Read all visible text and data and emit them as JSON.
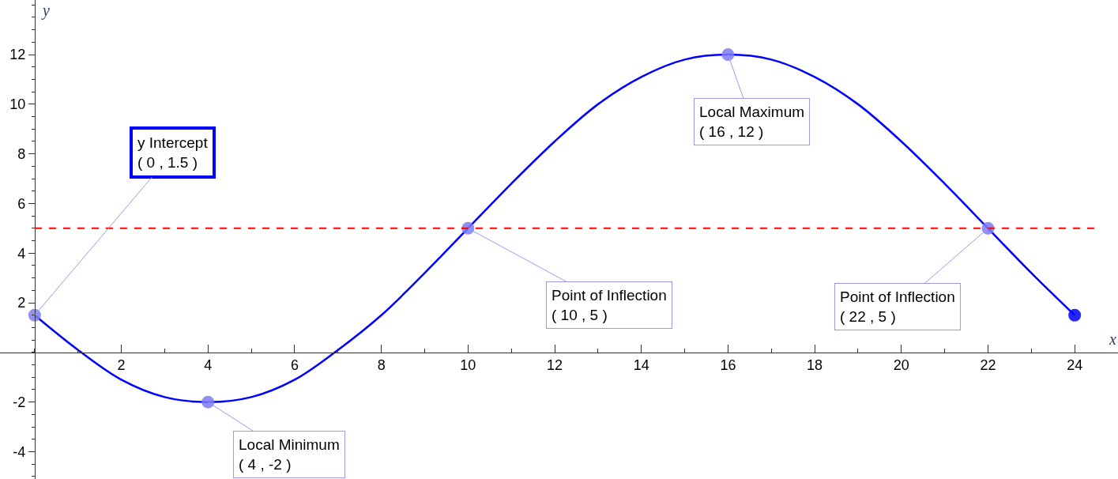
{
  "chart_data": {
    "type": "line",
    "xlabel": "x",
    "ylabel": "y",
    "xlim": [
      -0.8,
      25
    ],
    "ylim": [
      -5.1,
      14.2
    ],
    "xticks": [
      2,
      4,
      6,
      8,
      10,
      12,
      14,
      16,
      18,
      20,
      22,
      24
    ],
    "yticks": [
      -4,
      -2,
      2,
      4,
      6,
      8,
      10,
      12
    ],
    "series": [
      {
        "color": "#0000ff",
        "marker": "none",
        "x": [
          0,
          1,
          2,
          3,
          4,
          5,
          6,
          7,
          8,
          9,
          10,
          11,
          12,
          13,
          14,
          15,
          16,
          17,
          18,
          19,
          20,
          21,
          22,
          23,
          24
        ],
        "values": [
          1.5,
          0.1,
          -1.1,
          -1.8,
          -2,
          -1.8,
          -1.1,
          0.1,
          1.5,
          3.2,
          5,
          6.8,
          8.5,
          10,
          11.1,
          11.8,
          12,
          11.8,
          11.1,
          10,
          8.5,
          6.8,
          5,
          3.2,
          1.5
        ]
      },
      {
        "type": "scatter",
        "color": "#7b7bf5",
        "marker": "circle",
        "x": [
          0,
          4,
          10,
          16,
          22
        ],
        "values": [
          1.5,
          -2,
          5,
          12,
          5
        ]
      },
      {
        "type": "scatter",
        "color": "#0000ff",
        "marker": "circle",
        "x": [
          24
        ],
        "values": [
          1.5
        ]
      }
    ],
    "ref_lines": [
      {
        "axis": "y",
        "value": 5,
        "color": "#ff0000",
        "line_style": "dashed"
      }
    ],
    "annotations": [
      {
        "text": "y Intercept\n( 0 , 1.5 )",
        "x": 0,
        "y": 1.5
      },
      {
        "text": "Local Minimum\n( 4 , -2 )",
        "x": 4,
        "y": -2
      },
      {
        "text": "Point of Inflection\n( 10 , 5 )",
        "x": 10,
        "y": 5
      },
      {
        "text": "Local Maximum\n( 16 , 12 )",
        "x": 16,
        "y": 12
      },
      {
        "text": "Point of Inflection\n( 22 , 5 )",
        "x": 22,
        "y": 5
      }
    ]
  }
}
